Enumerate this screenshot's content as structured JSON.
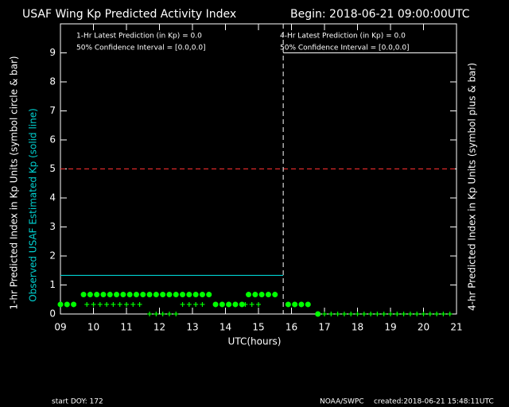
{
  "chart_data": {
    "type": "scatter",
    "title": "USAF Wing Kp Predicted Activity Index",
    "subtitle": "Begin: 2018-06-21 09:00:00UTC",
    "annotations": [
      "1-Hr Latest Prediction (in Kp) = 0.0",
      "50% Confidence Interval  = [0.0,0.0]",
      "4-Hr Latest Prediction (in Kp) = 0.0",
      "50% Confidence Interval  = [0.0,0.0]"
    ],
    "ylabel": "1-hr Predicted Index in Kp Units (symbol circle & bar)",
    "ylabel_observed": "Observed USAF Estimated Kp (solid line)",
    "y2label": "4-hr Predicted Index in Kp Units (symbol plus & bar)",
    "xlabel": "UTC(hours)",
    "footer_left": "start DOY:  172",
    "footer_center": "NOAA/SWPC",
    "footer_right": "created:2018-06-21 15:48:11UTC",
    "xlim": [
      9,
      21
    ],
    "xticks": [
      {
        "value": 9,
        "label": "09"
      },
      10,
      11,
      12,
      13,
      14,
      15,
      16,
      17,
      18,
      19,
      20,
      21
    ],
    "ylim": [
      0,
      10
    ],
    "yticks": [
      0,
      1,
      2,
      3,
      4,
      5,
      6,
      7,
      8,
      9
    ],
    "threshold": 5,
    "threshold_color": "#ff3030",
    "now": 15.75,
    "series": [
      {
        "name": "1-hr",
        "marker": "circle",
        "color": "#00ff00",
        "x": [
          9.0,
          9.2,
          9.4,
          9.7,
          9.9,
          10.1,
          10.3,
          10.5,
          10.7,
          10.9,
          11.1,
          11.3,
          11.5,
          11.7,
          11.9,
          12.1,
          12.3,
          12.5,
          12.7,
          12.9,
          13.1,
          13.3,
          13.5,
          13.7,
          13.9,
          14.1,
          14.3,
          14.5,
          14.7,
          14.9,
          15.1,
          15.3,
          15.5,
          15.9,
          16.1,
          16.3,
          16.5,
          16.8
        ],
        "values": [
          0.33,
          0.33,
          0.33,
          0.67,
          0.67,
          0.67,
          0.67,
          0.67,
          0.67,
          0.67,
          0.67,
          0.67,
          0.67,
          0.67,
          0.67,
          0.67,
          0.67,
          0.67,
          0.67,
          0.67,
          0.67,
          0.67,
          0.67,
          0.33,
          0.33,
          0.33,
          0.33,
          0.33,
          0.67,
          0.67,
          0.67,
          0.67,
          0.67,
          0.33,
          0.33,
          0.33,
          0.33,
          0
        ]
      },
      {
        "name": "4-hr",
        "marker": "plus",
        "color": "#00ff00",
        "x": [
          9.8,
          10.0,
          10.2,
          10.4,
          10.6,
          10.8,
          11.0,
          11.2,
          11.4,
          11.7,
          11.9,
          12.1,
          12.3,
          12.5,
          12.7,
          12.9,
          13.1,
          13.3,
          14.6,
          14.8,
          15.0,
          16.8,
          17.0,
          17.2,
          17.4,
          17.6,
          17.8,
          18.0,
          18.2,
          18.4,
          18.6,
          18.8,
          19.0,
          19.2,
          19.4,
          19.6,
          19.8,
          20.0,
          20.2,
          20.4,
          20.6,
          20.8
        ],
        "values": [
          0.33,
          0.33,
          0.33,
          0.33,
          0.33,
          0.33,
          0.33,
          0.33,
          0.33,
          0,
          0,
          0,
          0,
          0,
          0.33,
          0.33,
          0.33,
          0.33,
          0.33,
          0.33,
          0.33,
          0,
          0,
          0,
          0,
          0,
          0,
          0,
          0,
          0,
          0,
          0,
          0,
          0,
          0,
          0,
          0,
          0,
          0,
          0,
          0,
          0
        ]
      },
      {
        "name": "Observed",
        "marker": "line",
        "color": "#00d0d0",
        "x": [
          9,
          15.75
        ],
        "values": [
          1.33,
          1.33
        ]
      }
    ]
  }
}
